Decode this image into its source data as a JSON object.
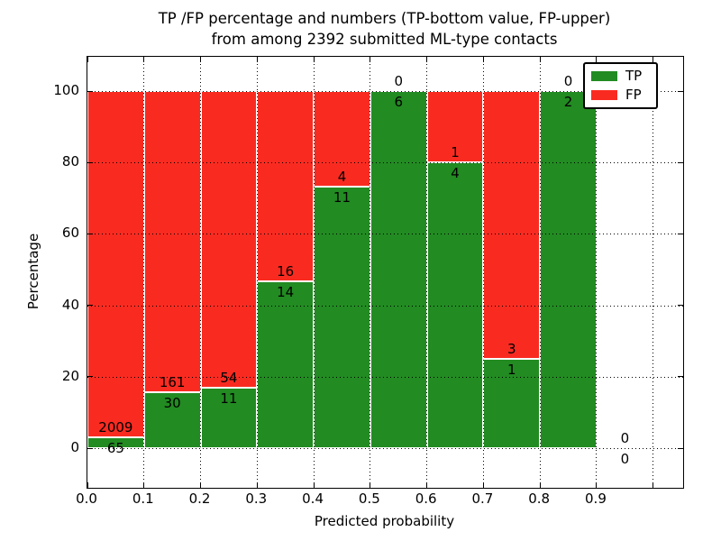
{
  "chart_data": {
    "type": "bar",
    "stacked": true,
    "normalized_to_percent": true,
    "title_line1": "TP /FP percentage and numbers (TP-bottom value, FP-upper)",
    "title_line2": "from among 2392 submitted ML-type contacts",
    "total_contacts_in_title": 2392,
    "xlabel": "Predicted probability",
    "ylabel": "Percentage",
    "x_tick_labels": [
      "0.0",
      "0.1",
      "0.2",
      "0.3",
      "0.4",
      "0.5",
      "0.6",
      "0.7",
      "0.8",
      "0.9"
    ],
    "x_unlabeled_tick": 1.0,
    "y_tick_values": [
      0,
      20,
      40,
      60,
      80,
      100
    ],
    "xlim": [
      0,
      1.053
    ],
    "ylim": [
      -12,
      110
    ],
    "grid": "dotted black, horizontal at y ticks and vertical at 0.1 steps, drawn above bars",
    "legend_position": "upper right",
    "legend": {
      "entries": [
        {
          "label": "TP",
          "color": "#228b22"
        },
        {
          "label": "FP",
          "color": "#f92b21"
        }
      ]
    },
    "colors": {
      "tp": "#228b22",
      "fp": "#f92b21",
      "bar_edge": "#ffffff",
      "axes": "#000000"
    },
    "bins": [
      {
        "x_start": 0.0,
        "x_end": 0.1,
        "tp": 65,
        "fp": 2009,
        "tp_pct": 3.13
      },
      {
        "x_start": 0.1,
        "x_end": 0.2,
        "tp": 30,
        "fp": 161,
        "tp_pct": 15.71
      },
      {
        "x_start": 0.2,
        "x_end": 0.3,
        "tp": 11,
        "fp": 54,
        "tp_pct": 16.92
      },
      {
        "x_start": 0.3,
        "x_end": 0.4,
        "tp": 14,
        "fp": 16,
        "tp_pct": 46.67
      },
      {
        "x_start": 0.4,
        "x_end": 0.5,
        "tp": 11,
        "fp": 4,
        "tp_pct": 73.33
      },
      {
        "x_start": 0.5,
        "x_end": 0.6,
        "tp": 6,
        "fp": 0,
        "tp_pct": 100
      },
      {
        "x_start": 0.6,
        "x_end": 0.7,
        "tp": 4,
        "fp": 1,
        "tp_pct": 80
      },
      {
        "x_start": 0.7,
        "x_end": 0.8,
        "tp": 1,
        "fp": 3,
        "tp_pct": 25
      },
      {
        "x_start": 0.8,
        "x_end": 0.9,
        "tp": 2,
        "fp": 0,
        "tp_pct": 100
      },
      {
        "x_start": 0.9,
        "x_end": 1.0,
        "tp": 0,
        "fp": 0,
        "tp_pct": 0
      }
    ]
  }
}
